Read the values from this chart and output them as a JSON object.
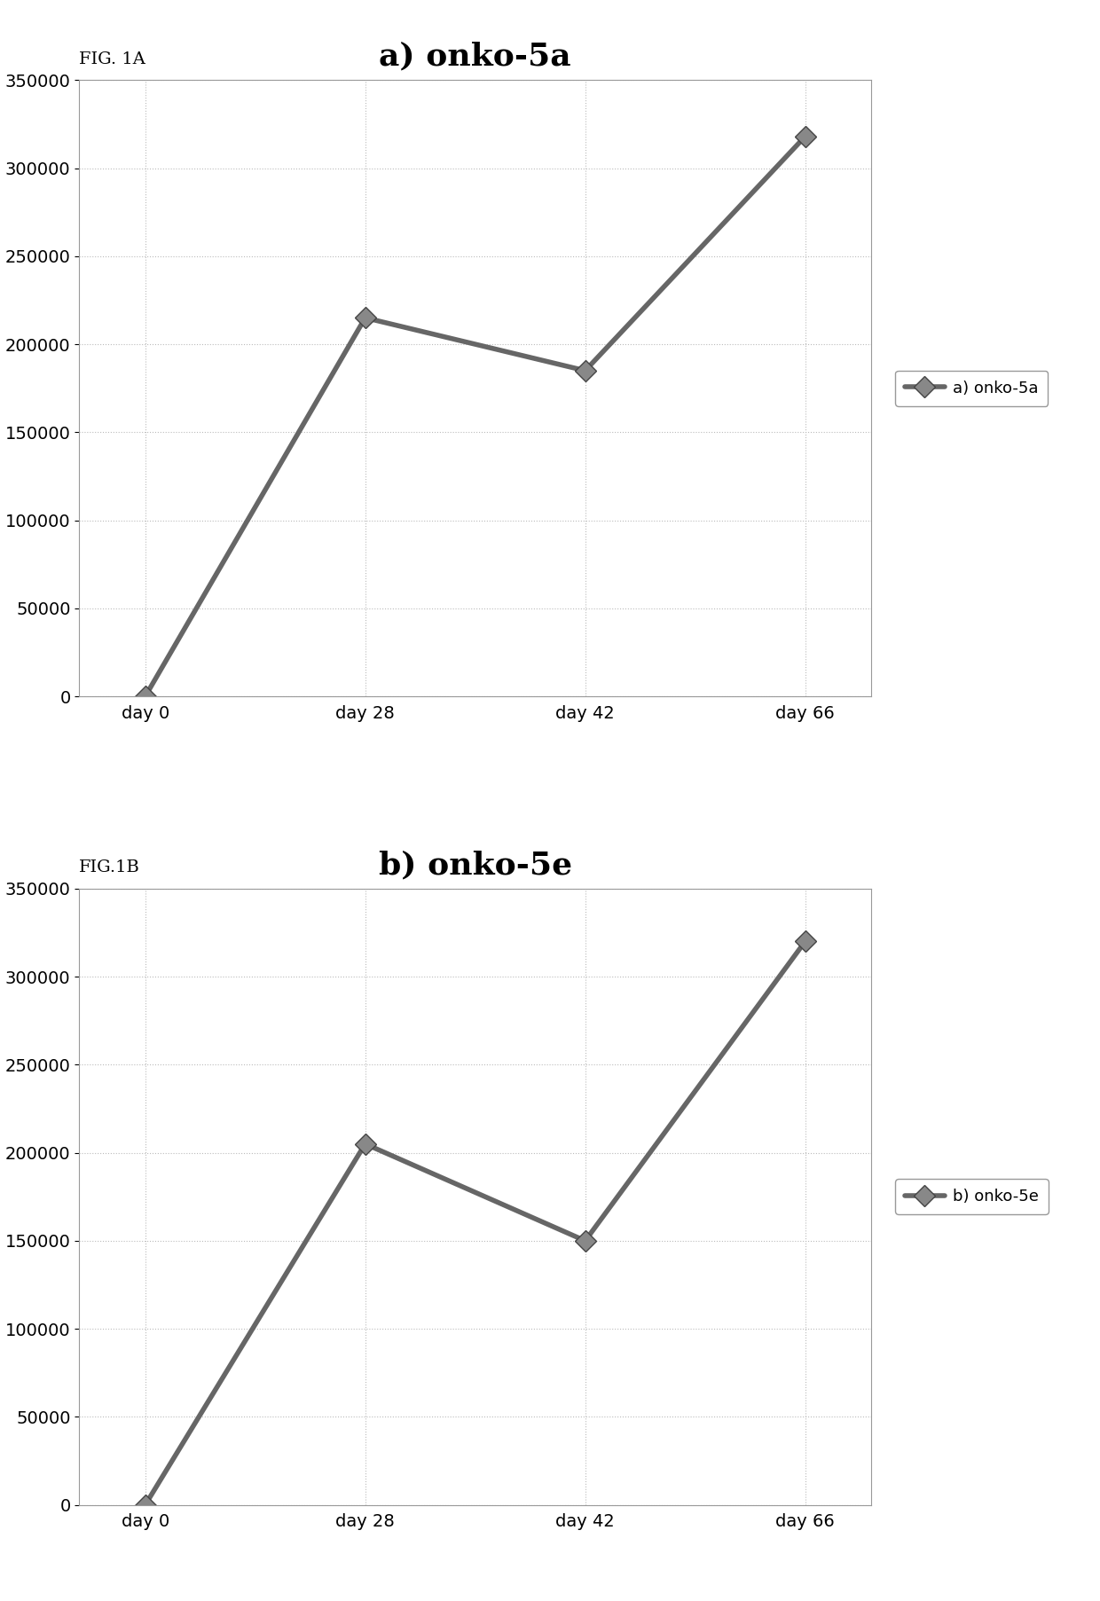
{
  "chart_a": {
    "title": "a) onko-5a",
    "legend_label": "a) onko-5a",
    "x_labels": [
      "day 0",
      "day 28",
      "day 42",
      "day 66"
    ],
    "x_values": [
      0,
      1,
      2,
      3
    ],
    "y_values": [
      0,
      215000,
      185000,
      318000
    ],
    "ylim": [
      0,
      350000
    ],
    "yticks": [
      0,
      50000,
      100000,
      150000,
      200000,
      250000,
      300000,
      350000
    ],
    "fig_label": "FIG. 1A"
  },
  "chart_b": {
    "title": "b) onko-5e",
    "legend_label": "b) onko-5e",
    "x_labels": [
      "day 0",
      "day 28",
      "day 42",
      "day 66"
    ],
    "x_values": [
      0,
      1,
      2,
      3
    ],
    "y_values": [
      0,
      205000,
      150000,
      320000
    ],
    "ylim": [
      0,
      350000
    ],
    "yticks": [
      0,
      50000,
      100000,
      150000,
      200000,
      250000,
      300000,
      350000
    ],
    "fig_label": "FIG.1B"
  },
  "line_color": "#666666",
  "marker_color": "#888888",
  "grid_color": "#bbbbbb",
  "background_color": "#ffffff",
  "title_fontsize": 26,
  "tick_fontsize": 14,
  "legend_fontsize": 13,
  "fig_label_fontsize": 14,
  "linewidth": 4,
  "markersize": 12
}
